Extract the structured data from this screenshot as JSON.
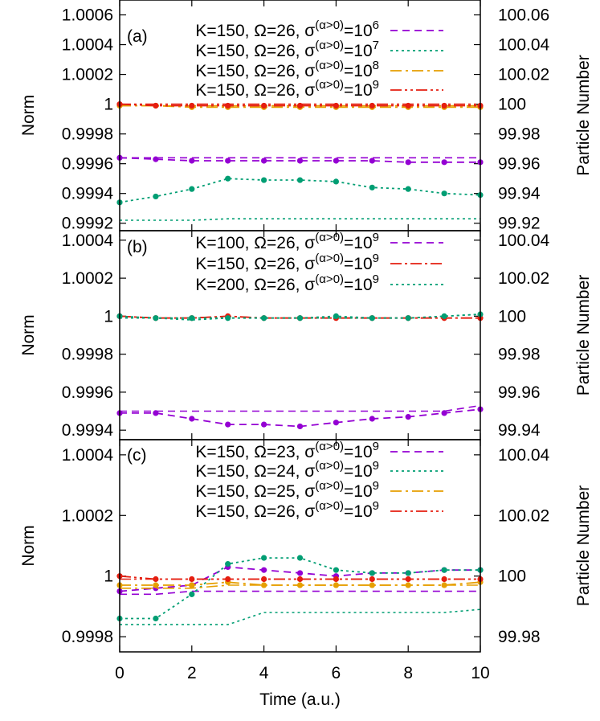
{
  "chart_data": [
    {
      "id": "a",
      "type": "line",
      "panel_label": "(a)",
      "xlim": [
        0,
        10
      ],
      "ylim": [
        0.99915,
        1.0007
      ],
      "y2lim": [
        99.915,
        100.07
      ],
      "ylabel": "Norm",
      "y2label": "Particle Number",
      "yticks": [
        "1.0006",
        "1.0004",
        "1.0002",
        "1",
        "0.9998",
        "0.9996",
        "0.9994",
        "0.9992"
      ],
      "ytick_values": [
        1.0006,
        1.0004,
        1.0002,
        1.0,
        0.9998,
        0.9996,
        0.9994,
        0.9992
      ],
      "y2ticks": [
        "100.06",
        "100.04",
        "100.02",
        "100",
        "99.98",
        "99.96",
        "99.94",
        "99.92"
      ],
      "y2tick_values": [
        100.06,
        100.04,
        100.02,
        100.0,
        99.98,
        99.96,
        99.94,
        99.92
      ],
      "legend_position": "top-right",
      "series": [
        {
          "name": "K=150, Ω=26, σ(α>0)=10⁶",
          "label": {
            "pre": "K=150, Ω=26, σ",
            "sup1": "(α>0)",
            "mid": "=10",
            "sup2": "6"
          },
          "color": "#9400d3",
          "dash": "9,6",
          "norm_x": [
            0,
            1,
            2,
            3,
            4,
            5,
            6,
            7,
            8,
            9,
            10
          ],
          "norm": [
            0.99964,
            0.99963,
            0.99962,
            0.99962,
            0.99962,
            0.99962,
            0.99962,
            0.99962,
            0.99961,
            0.99961,
            0.99961
          ],
          "particle": [
            99.964,
            99.964,
            99.964,
            99.964,
            99.964,
            99.964,
            99.964,
            99.964,
            99.964,
            99.964,
            99.964
          ]
        },
        {
          "name": "K=150, Ω=26, σ(α>0)=10⁷",
          "label": {
            "pre": "K=150, Ω=26, σ",
            "sup1": "(α>0)",
            "mid": "=10",
            "sup2": "7"
          },
          "color": "#009e73",
          "dash": "3,4",
          "norm_x": [
            0,
            1,
            2,
            3,
            4,
            5,
            6,
            7,
            8,
            9,
            10
          ],
          "norm": [
            0.99934,
            0.99938,
            0.99943,
            0.9995,
            0.99949,
            0.99949,
            0.99948,
            0.99944,
            0.99943,
            0.9994,
            0.99939
          ],
          "particle": [
            99.922,
            99.922,
            99.922,
            99.923,
            99.923,
            99.923,
            99.923,
            99.923,
            99.923,
            99.923,
            99.923
          ]
        },
        {
          "name": "K=150, Ω=26, σ(α>0)=10⁸",
          "label": {
            "pre": "K=150, Ω=26, σ",
            "sup1": "(α>0)",
            "mid": "=10",
            "sup2": "8"
          },
          "color": "#e69f00",
          "dash": "14,5,3,5",
          "norm_x": [
            0,
            1,
            2,
            3,
            4,
            5,
            6,
            7,
            8,
            9,
            10
          ],
          "norm": [
            0.99999,
            0.99999,
            0.99998,
            0.99998,
            0.99998,
            0.99998,
            0.99998,
            0.99998,
            0.99998,
            0.99998,
            0.99998
          ],
          "particle": [
            99.999,
            99.999,
            99.999,
            99.999,
            99.999,
            99.999,
            99.999,
            99.999,
            99.999,
            99.999,
            99.999
          ]
        },
        {
          "name": "K=150, Ω=26, σ(α>0)=10⁹",
          "label": {
            "pre": "K=150, Ω=26, σ",
            "sup1": "(α>0)",
            "mid": "=10",
            "sup2": "9"
          },
          "color": "#e51e10",
          "dash": "14,4,3,4,3,4",
          "norm_x": [
            0,
            1,
            2,
            3,
            4,
            5,
            6,
            7,
            8,
            9,
            10
          ],
          "norm": [
            1.0,
            0.99999,
            0.99999,
            0.99999,
            0.99999,
            0.99999,
            0.99999,
            0.99999,
            0.99999,
            0.99999,
            0.99999
          ],
          "particle": [
            100.0,
            100.0,
            100.0,
            100.0,
            100.0,
            100.0,
            100.0,
            100.0,
            100.0,
            100.0,
            100.0
          ]
        }
      ]
    },
    {
      "id": "b",
      "type": "line",
      "panel_label": "(b)",
      "xlim": [
        0,
        10
      ],
      "ylim": [
        0.99935,
        1.00045
      ],
      "y2lim": [
        99.935,
        100.045
      ],
      "ylabel": "Norm",
      "y2label": "Particle Number",
      "yticks": [
        "1.0004",
        "1.0002",
        "1",
        "0.9998",
        "0.9996",
        "0.9994"
      ],
      "ytick_values": [
        1.0004,
        1.0002,
        1.0,
        0.9998,
        0.9996,
        0.9994
      ],
      "y2ticks": [
        "100.04",
        "100.02",
        "100",
        "99.98",
        "99.96",
        "99.94"
      ],
      "y2tick_values": [
        100.04,
        100.02,
        100.0,
        99.98,
        99.96,
        99.94
      ],
      "legend_position": "top-right",
      "series": [
        {
          "name": "K=100, Ω=26, σ(α>0)=10⁹",
          "label": {
            "pre": "K=100, Ω=26, σ",
            "sup1": "(α>0)",
            "mid": "=10",
            "sup2": "9"
          },
          "color": "#9400d3",
          "dash": "9,6",
          "norm_x": [
            0,
            1,
            2,
            3,
            4,
            5,
            6,
            7,
            8,
            9,
            10
          ],
          "norm": [
            0.99949,
            0.99949,
            0.99946,
            0.99943,
            0.99943,
            0.99942,
            0.99944,
            0.99946,
            0.99947,
            0.99949,
            0.99951
          ],
          "particle": [
            99.95,
            99.95,
            99.95,
            99.95,
            99.95,
            99.95,
            99.95,
            99.95,
            99.95,
            99.95,
            99.953
          ]
        },
        {
          "name": "K=150, Ω=26, σ(α>0)=10⁹",
          "label": {
            "pre": "K=150, Ω=26, σ",
            "sup1": "(α>0)",
            "mid": "=10",
            "sup2": "9"
          },
          "color": "#e51e10",
          "dash": "14,4,3,4",
          "norm_x": [
            0,
            1,
            2,
            3,
            4,
            5,
            6,
            7,
            8,
            9,
            10
          ],
          "norm": [
            1.0,
            0.99999,
            0.99999,
            1.0,
            0.99999,
            0.99999,
            0.99999,
            0.99999,
            0.99999,
            0.99999,
            0.99999
          ],
          "particle": [
            100.0,
            99.999,
            99.999,
            100.0,
            99.999,
            99.999,
            99.999,
            99.999,
            99.999,
            99.999,
            99.999
          ]
        },
        {
          "name": "K=200, Ω=26, σ(α>0)=10⁹",
          "label": {
            "pre": "K=200, Ω=26, σ",
            "sup1": "(α>0)",
            "mid": "=10",
            "sup2": "9"
          },
          "color": "#009e73",
          "dash": "3,4",
          "norm_x": [
            0,
            1,
            2,
            3,
            4,
            5,
            6,
            7,
            8,
            9,
            10
          ],
          "norm": [
            1.0,
            0.99999,
            0.99999,
            0.99999,
            0.99999,
            0.99999,
            1.0,
            0.99999,
            0.99999,
            1.0,
            1.00001
          ],
          "particle": [
            99.999,
            99.999,
            99.998,
            99.999,
            99.999,
            99.999,
            99.999,
            99.999,
            99.999,
            100.0,
            100.001
          ]
        }
      ]
    },
    {
      "id": "c",
      "type": "line",
      "panel_label": "(c)",
      "xlim": [
        0,
        10
      ],
      "ylim": [
        0.99975,
        1.00045
      ],
      "y2lim": [
        99.975,
        100.045
      ],
      "xlabel": "Time (a.u.)",
      "ylabel": "Norm",
      "y2label": "Particle Number",
      "xticks": [
        "0",
        "2",
        "4",
        "6",
        "8",
        "10"
      ],
      "xtick_values": [
        0,
        2,
        4,
        6,
        8,
        10
      ],
      "yticks": [
        "1.0004",
        "1.0002",
        "1",
        "0.9998"
      ],
      "ytick_values": [
        1.0004,
        1.0002,
        1.0,
        0.9998
      ],
      "y2ticks": [
        "100.04",
        "100.02",
        "100",
        "99.98"
      ],
      "y2tick_values": [
        100.04,
        100.02,
        100.0,
        99.98
      ],
      "legend_position": "top-right",
      "series": [
        {
          "name": "K=150, Ω=23, σ(α>0)=10⁹",
          "label": {
            "pre": "K=150, Ω=23, σ",
            "sup1": "(α>0)",
            "mid": "=10",
            "sup2": "9"
          },
          "color": "#9400d3",
          "dash": "9,6",
          "norm_x": [
            0,
            1,
            2,
            3,
            4,
            5,
            6,
            7,
            8,
            9,
            10
          ],
          "norm": [
            0.99995,
            0.99996,
            0.99997,
            1.00003,
            1.00002,
            1.00001,
            1.0,
            1.00001,
            1.00001,
            1.00002,
            1.00002
          ],
          "particle": [
            99.994,
            99.994,
            99.995,
            99.995,
            99.995,
            99.995,
            99.995,
            99.995,
            99.995,
            99.995,
            99.995
          ]
        },
        {
          "name": "K=150, Ω=24, σ(α>0)=10⁹",
          "label": {
            "pre": "K=150, Ω=24, σ",
            "sup1": "(α>0)",
            "mid": "=10",
            "sup2": "9"
          },
          "color": "#009e73",
          "dash": "3,4",
          "norm_x": [
            0,
            1,
            2,
            3,
            4,
            5,
            6,
            7,
            8,
            9,
            10
          ],
          "norm": [
            0.99986,
            0.99986,
            0.99994,
            1.00004,
            1.00006,
            1.00006,
            1.00002,
            1.00001,
            1.00001,
            1.00002,
            1.00002
          ],
          "particle": [
            99.984,
            99.984,
            99.984,
            99.984,
            99.988,
            99.988,
            99.988,
            99.988,
            99.988,
            99.988,
            99.989
          ]
        },
        {
          "name": "K=150, Ω=25, σ(α>0)=10⁹",
          "label": {
            "pre": "K=150, Ω=25, σ",
            "sup1": "(α>0)",
            "mid": "=10",
            "sup2": "9"
          },
          "color": "#e69f00",
          "dash": "14,5,3,5",
          "norm_x": [
            0,
            1,
            2,
            3,
            4,
            5,
            6,
            7,
            8,
            9,
            10
          ],
          "norm": [
            0.99997,
            0.99997,
            0.99997,
            0.99998,
            0.99997,
            0.99997,
            0.99997,
            0.99997,
            0.99997,
            0.99997,
            0.99998
          ],
          "particle": [
            99.996,
            99.996,
            99.996,
            99.997,
            99.997,
            99.997,
            99.997,
            99.997,
            99.997,
            99.997,
            99.997
          ]
        },
        {
          "name": "K=150, Ω=26, σ(α>0)=10⁹",
          "label": {
            "pre": "K=150, Ω=26, σ",
            "sup1": "(α>0)",
            "mid": "=10",
            "sup2": "9"
          },
          "color": "#e51e10",
          "dash": "14,4,3,4,3,4",
          "norm_x": [
            0,
            1,
            2,
            3,
            4,
            5,
            6,
            7,
            8,
            9,
            10
          ],
          "norm": [
            1.0,
            0.99999,
            0.99999,
            0.99999,
            0.99999,
            0.99999,
            0.99999,
            0.99999,
            0.99999,
            0.99999,
            0.99999
          ],
          "particle": [
            99.999,
            99.999,
            99.999,
            99.999,
            99.999,
            99.999,
            99.999,
            99.999,
            99.999,
            99.999,
            99.999
          ]
        }
      ]
    }
  ]
}
